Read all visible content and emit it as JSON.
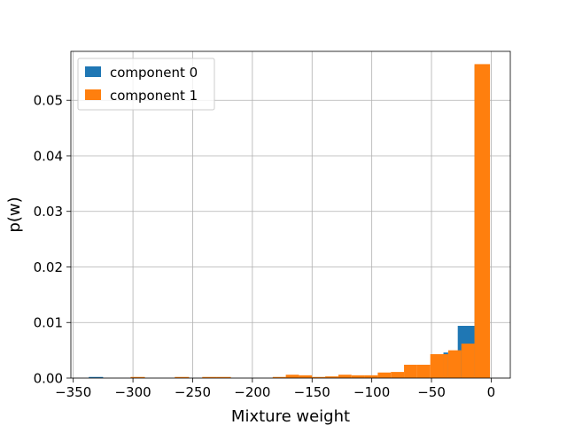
{
  "chart_data": {
    "type": "histogram",
    "xlabel": "Mixture weight",
    "ylabel": "p(w)",
    "xlim": [
      -352,
      16
    ],
    "ylim": [
      0,
      0.0588
    ],
    "xticks": [
      -350,
      -300,
      -250,
      -200,
      -150,
      -100,
      -50,
      0
    ],
    "xtick_labels": [
      "−350",
      "−300",
      "−250",
      "−200",
      "−150",
      "−100",
      "−50",
      "0"
    ],
    "yticks": [
      0.0,
      0.01,
      0.02,
      0.03,
      0.04,
      0.05
    ],
    "ytick_labels": [
      "0.00",
      "0.01",
      "0.02",
      "0.03",
      "0.04",
      "0.05"
    ],
    "grid": true,
    "legend_position": "top-left",
    "series": [
      {
        "name": "component 0",
        "color": "#1f77b4",
        "bins": [
          {
            "x0": -337,
            "x1": -325,
            "y": 0.0002
          },
          {
            "x0": -40,
            "x1": -36,
            "y": 0.0046
          },
          {
            "x0": -28,
            "x1": -14,
            "y": 0.0094
          },
          {
            "x0": -14,
            "x1": -12,
            "y": 0.0563
          }
        ]
      },
      {
        "name": "component 1",
        "color": "#ff7f0e",
        "bins": [
          {
            "x0": -302,
            "x1": -290,
            "y": 0.0002
          },
          {
            "x0": -265,
            "x1": -253,
            "y": 0.0002
          },
          {
            "x0": -242,
            "x1": -230,
            "y": 0.0002
          },
          {
            "x0": -230,
            "x1": -218,
            "y": 0.0002
          },
          {
            "x0": -183,
            "x1": -172,
            "y": 0.0002
          },
          {
            "x0": -172,
            "x1": -161,
            "y": 0.0006
          },
          {
            "x0": -161,
            "x1": -150,
            "y": 0.0005
          },
          {
            "x0": -150,
            "x1": -139,
            "y": 0.0002
          },
          {
            "x0": -139,
            "x1": -128,
            "y": 0.0003
          },
          {
            "x0": -128,
            "x1": -117,
            "y": 0.0006
          },
          {
            "x0": -117,
            "x1": -106,
            "y": 0.0005
          },
          {
            "x0": -106,
            "x1": -95,
            "y": 0.0005
          },
          {
            "x0": -95,
            "x1": -84,
            "y": 0.001
          },
          {
            "x0": -84,
            "x1": -73,
            "y": 0.0011
          },
          {
            "x0": -73,
            "x1": -62,
            "y": 0.0024
          },
          {
            "x0": -62,
            "x1": -51,
            "y": 0.0024
          },
          {
            "x0": -51,
            "x1": -40,
            "y": 0.0043
          },
          {
            "x0": -40,
            "x1": -36,
            "y": 0.0043
          },
          {
            "x0": -36,
            "x1": -25,
            "y": 0.005
          },
          {
            "x0": -25,
            "x1": -14,
            "y": 0.0062
          },
          {
            "x0": -14,
            "x1": -1,
            "y": 0.0565
          }
        ]
      }
    ]
  }
}
